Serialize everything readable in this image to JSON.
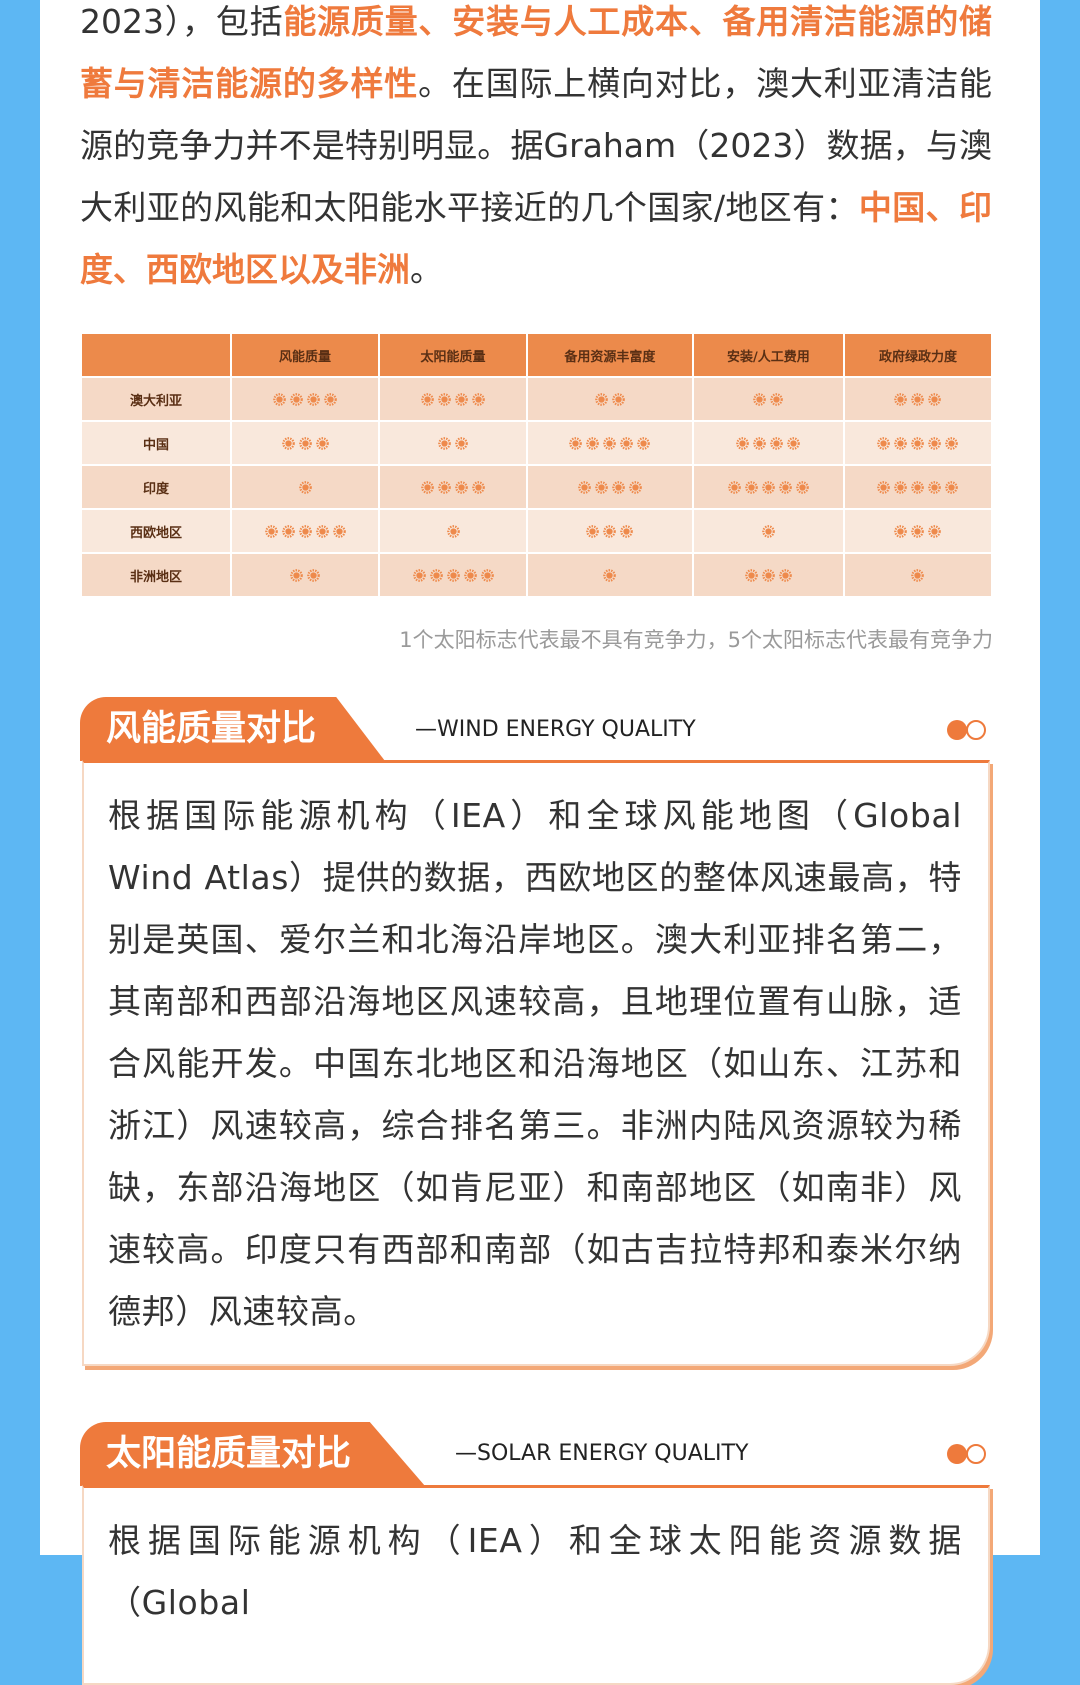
{
  "intro": {
    "segments": [
      {
        "text": "2023），包括",
        "highlight": false
      },
      {
        "text": "能源质量、安装与人工成本、备用清洁能源的储蓄与清洁能源的多样性",
        "highlight": true
      },
      {
        "text": "。在国际上横向对比，澳大利亚清洁能源的竞争力并不是特别明显。据Graham（2023）数据，与澳大利亚的风能和太阳能水平接近的几个国家/地区有：",
        "highlight": false
      },
      {
        "text": "中国、印度、西欧地区以及非洲",
        "highlight": true
      },
      {
        "text": "。",
        "highlight": false
      }
    ]
  },
  "table": {
    "header": [
      "风能质量",
      "太阳能质量",
      "备用资源丰富度",
      "安装/人工费用",
      "政府绿政力度"
    ],
    "rows": [
      {
        "name": "澳大利亚",
        "ratings": [
          4,
          4,
          2,
          2,
          3
        ]
      },
      {
        "name": "中国",
        "ratings": [
          3,
          2,
          5,
          4,
          5
        ]
      },
      {
        "name": "印度",
        "ratings": [
          1,
          4,
          4,
          5,
          5
        ]
      },
      {
        "name": "西欧地区",
        "ratings": [
          5,
          1,
          3,
          1,
          3
        ]
      },
      {
        "name": "非洲地区",
        "ratings": [
          2,
          5,
          1,
          3,
          1
        ]
      }
    ],
    "note": "1个太阳标志代表最不具有竞争力，5个太阳标志代表最有竞争力"
  },
  "sections": [
    {
      "title": "风能质量对比",
      "subtitle": "—WIND ENERGY QUALITY",
      "text": "根据国际能源机构（IEA）和全球风能地图（Global Wind Atlas）提供的数据，西欧地区的整体风速最高，特别是英国、爱尔兰和北海沿岸地区。澳大利亚排名第二，其南部和西部沿海地区风速较高，且地理位置有山脉，适合风能开发。中国东北地区和沿海地区（如山东、江苏和浙江）风速较高，综合排名第三。非洲内陆风资源较为稀缺，东部沿海地区（如肯尼亚）和南部地区（如南非）风速较高。印度只有西部和南部（如古吉拉特邦和泰米尔纳德邦）风速较高。"
    },
    {
      "title": "太阳能质量对比",
      "subtitle": "—SOLAR ENERGY QUALITY",
      "text": "根据国际能源机构（IEA）和全球太阳能资源数据（Global"
    }
  ]
}
